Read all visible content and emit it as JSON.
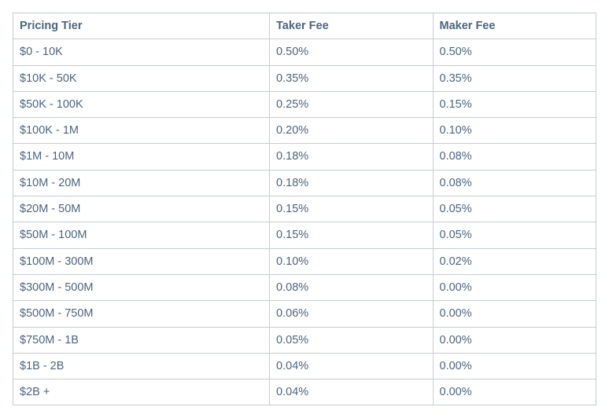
{
  "pricing_table": {
    "type": "table",
    "text_color": "#4a6580",
    "border_color": "#c5ccd6",
    "background_color": "#ffffff",
    "header_fontsize": 14.5,
    "header_fontweight": 700,
    "cell_fontsize": 14.5,
    "cell_fontweight": 400,
    "column_widths_pct": [
      44,
      28,
      28
    ],
    "columns": [
      {
        "key": "tier",
        "label": "Pricing Tier"
      },
      {
        "key": "taker",
        "label": "Taker Fee"
      },
      {
        "key": "maker",
        "label": "Maker Fee"
      }
    ],
    "rows": [
      {
        "tier": "$0 - 10K",
        "taker": "0.50%",
        "maker": "0.50%"
      },
      {
        "tier": "$10K - 50K",
        "taker": "0.35%",
        "maker": "0.35%"
      },
      {
        "tier": "$50K - 100K",
        "taker": "0.25%",
        "maker": "0.15%"
      },
      {
        "tier": "$100K - 1M",
        "taker": "0.20%",
        "maker": "0.10%"
      },
      {
        "tier": "$1M - 10M",
        "taker": "0.18%",
        "maker": "0.08%"
      },
      {
        "tier": "$10M - 20M",
        "taker": "0.18%",
        "maker": "0.08%"
      },
      {
        "tier": "$20M - 50M",
        "taker": "0.15%",
        "maker": "0.05%"
      },
      {
        "tier": "$50M - 100M",
        "taker": "0.15%",
        "maker": "0.05%"
      },
      {
        "tier": "$100M - 300M",
        "taker": "0.10%",
        "maker": "0.02%"
      },
      {
        "tier": "$300M - 500M",
        "taker": "0.08%",
        "maker": "0.00%"
      },
      {
        "tier": "$500M - 750M",
        "taker": "0.06%",
        "maker": "0.00%"
      },
      {
        "tier": "$750M - 1B",
        "taker": "0.05%",
        "maker": "0.00%"
      },
      {
        "tier": "$1B - 2B",
        "taker": "0.04%",
        "maker": "0.00%"
      },
      {
        "tier": "$2B +",
        "taker": "0.04%",
        "maker": "0.00%"
      }
    ]
  }
}
